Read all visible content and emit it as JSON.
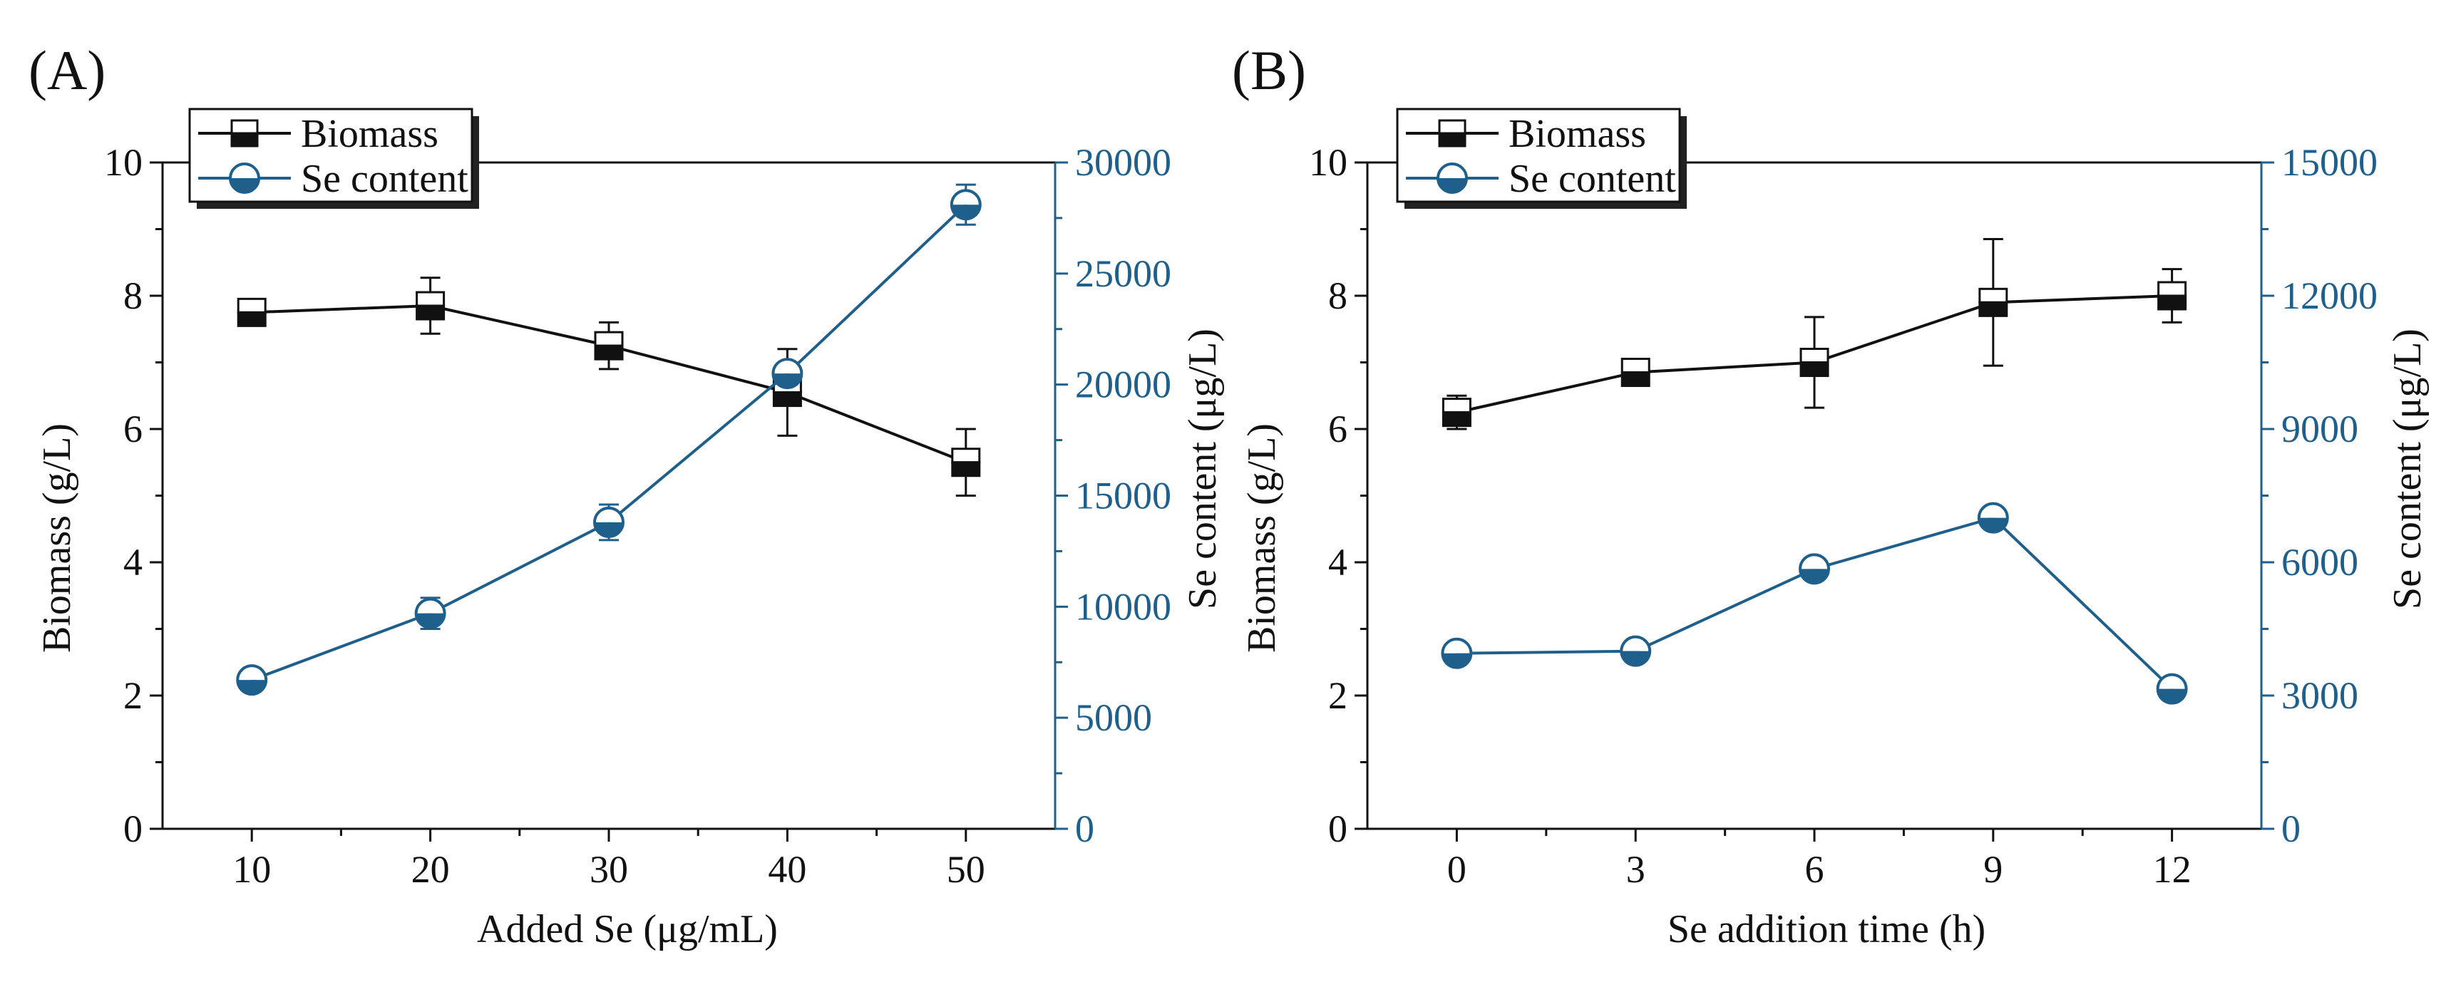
{
  "colors": {
    "biomass": "#111111",
    "se": "#1f5f8b"
  },
  "chart_data": [
    {
      "type": "line",
      "panel_label": "(A)",
      "xlabel": "Added Se (μg/mL)",
      "ylabel_left": "Biomass (g/L)",
      "ylabel_right": "Se content (μg/L)",
      "x": [
        10,
        20,
        30,
        40,
        50
      ],
      "x_ticks": [
        10,
        20,
        30,
        40,
        50
      ],
      "xlim": [
        5,
        55
      ],
      "ylim_left": [
        0,
        10
      ],
      "y_ticks_left": [
        0,
        2,
        4,
        6,
        8,
        10
      ],
      "ylim_right": [
        0,
        30000
      ],
      "y_ticks_right": [
        0,
        5000,
        10000,
        15000,
        20000,
        25000,
        30000
      ],
      "legend": [
        "Biomass",
        "Se content"
      ],
      "series": [
        {
          "name": "Biomass",
          "axis": "left",
          "marker": "square",
          "values": [
            7.75,
            7.85,
            7.25,
            6.55,
            5.5
          ],
          "errors": [
            0.15,
            0.42,
            0.35,
            0.65,
            0.5
          ]
        },
        {
          "name": "Se content",
          "axis": "right",
          "marker": "circle",
          "values": [
            6700,
            9700,
            13800,
            20500,
            28100
          ],
          "errors": [
            300,
            700,
            800,
            500,
            900
          ]
        }
      ]
    },
    {
      "type": "line",
      "panel_label": "(B)",
      "xlabel": "Se addition time (h)",
      "ylabel_left": "Biomass (g/L)",
      "ylabel_right": "Se content (μg/L)",
      "x": [
        0,
        3,
        6,
        9,
        12
      ],
      "x_ticks": [
        0,
        3,
        6,
        9,
        12
      ],
      "xlim": [
        -1.5,
        13.5
      ],
      "ylim_left": [
        0,
        10
      ],
      "y_ticks_left": [
        0,
        2,
        4,
        6,
        8,
        10
      ],
      "ylim_right": [
        0,
        15000
      ],
      "y_ticks_right": [
        0,
        3000,
        6000,
        9000,
        12000,
        15000
      ],
      "legend": [
        "Biomass",
        "Se content"
      ],
      "series": [
        {
          "name": "Biomass",
          "axis": "left",
          "marker": "square",
          "values": [
            6.25,
            6.85,
            7.0,
            7.9,
            8.0
          ],
          "errors": [
            0.25,
            0.15,
            0.68,
            0.95,
            0.4
          ]
        },
        {
          "name": "Se content",
          "axis": "right",
          "marker": "circle",
          "values": [
            3950,
            4000,
            5850,
            7000,
            3150
          ],
          "errors": [
            100,
            100,
            150,
            200,
            200
          ]
        }
      ]
    }
  ]
}
